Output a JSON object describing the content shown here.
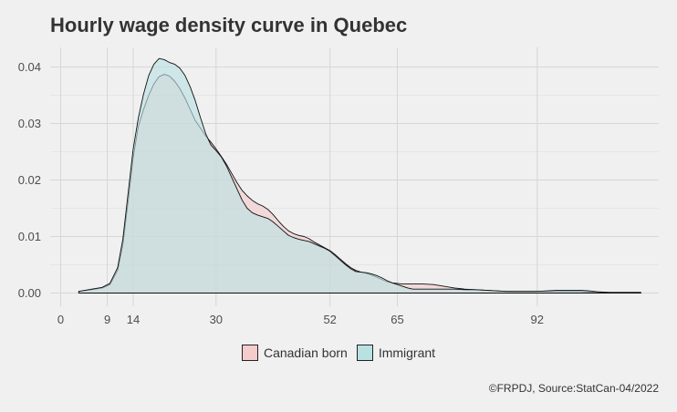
{
  "chart_data": {
    "type": "area",
    "title": "Hourly wage density curve in Quebec",
    "xlabel": "",
    "ylabel": "",
    "xlim": [
      0,
      113
    ],
    "ylim": [
      0,
      0.042
    ],
    "x_ticks": [
      0,
      9,
      14,
      30,
      52,
      65,
      92
    ],
    "y_ticks": [
      0.0,
      0.01,
      0.02,
      0.03,
      0.04
    ],
    "y_tick_labels": [
      "0.00",
      "0.01",
      "0.02",
      "0.03",
      "0.04"
    ],
    "grid": true,
    "legend_position": "bottom",
    "series": [
      {
        "name": "Canadian born",
        "color": "#f4cccc",
        "points": [
          [
            3.5,
            0.0003
          ],
          [
            6,
            0.0006
          ],
          [
            8,
            0.0009
          ],
          [
            9.5,
            0.0015
          ],
          [
            11,
            0.004
          ],
          [
            12,
            0.0085
          ],
          [
            13,
            0.016
          ],
          [
            14,
            0.024
          ],
          [
            15,
            0.0295
          ],
          [
            16,
            0.0325
          ],
          [
            17,
            0.035
          ],
          [
            18,
            0.037
          ],
          [
            19,
            0.0383
          ],
          [
            20,
            0.0387
          ],
          [
            21,
            0.0384
          ],
          [
            22,
            0.0375
          ],
          [
            23,
            0.0362
          ],
          [
            24,
            0.0345
          ],
          [
            25,
            0.0325
          ],
          [
            26,
            0.0305
          ],
          [
            27,
            0.0292
          ],
          [
            28,
            0.0278
          ],
          [
            29,
            0.0267
          ],
          [
            30,
            0.0255
          ],
          [
            31,
            0.0242
          ],
          [
            32,
            0.0228
          ],
          [
            33,
            0.0212
          ],
          [
            34,
            0.0196
          ],
          [
            35,
            0.0182
          ],
          [
            36,
            0.0172
          ],
          [
            37,
            0.0164
          ],
          [
            38,
            0.0158
          ],
          [
            39,
            0.0154
          ],
          [
            40,
            0.0148
          ],
          [
            41,
            0.0139
          ],
          [
            42,
            0.0128
          ],
          [
            43,
            0.0118
          ],
          [
            44,
            0.011
          ],
          [
            45,
            0.0105
          ],
          [
            46,
            0.0102
          ],
          [
            47,
            0.01
          ],
          [
            48,
            0.0096
          ],
          [
            49,
            0.009
          ],
          [
            50,
            0.0085
          ],
          [
            51,
            0.008
          ],
          [
            52,
            0.0075
          ],
          [
            53,
            0.0068
          ],
          [
            54,
            0.006
          ],
          [
            55,
            0.0052
          ],
          [
            56,
            0.0045
          ],
          [
            57,
            0.004
          ],
          [
            58,
            0.0037
          ],
          [
            59,
            0.0035
          ],
          [
            60,
            0.0032
          ],
          [
            61,
            0.0028
          ],
          [
            62,
            0.0024
          ],
          [
            63,
            0.002
          ],
          [
            64,
            0.0018
          ],
          [
            65,
            0.0017
          ],
          [
            66,
            0.0016
          ],
          [
            67,
            0.0016
          ],
          [
            68,
            0.0016
          ],
          [
            70,
            0.0016
          ],
          [
            72,
            0.0015
          ],
          [
            74,
            0.0012
          ],
          [
            76,
            0.0009
          ],
          [
            78,
            0.0007
          ],
          [
            80,
            0.0006
          ],
          [
            82,
            0.0005
          ],
          [
            84,
            0.0004
          ],
          [
            86,
            0.0003
          ],
          [
            88,
            0.0003
          ],
          [
            90,
            0.0003
          ],
          [
            92,
            0.0003
          ],
          [
            94,
            0.0003
          ],
          [
            96,
            0.0003
          ],
          [
            98,
            0.0003
          ],
          [
            100,
            0.0003
          ],
          [
            102,
            0.0002
          ],
          [
            104,
            0.0001
          ],
          [
            106,
            0.0001
          ],
          [
            108,
            0.0001
          ],
          [
            110,
            0.0001
          ],
          [
            112,
            0.0001
          ]
        ]
      },
      {
        "name": "Immigrant",
        "color": "#b9e1e2",
        "points": [
          [
            3.5,
            0.0003
          ],
          [
            6,
            0.0007
          ],
          [
            8,
            0.001
          ],
          [
            9.5,
            0.0017
          ],
          [
            11,
            0.0045
          ],
          [
            12,
            0.0095
          ],
          [
            13,
            0.0175
          ],
          [
            14,
            0.0255
          ],
          [
            15,
            0.031
          ],
          [
            16,
            0.0352
          ],
          [
            17,
            0.0385
          ],
          [
            18,
            0.0405
          ],
          [
            19,
            0.0415
          ],
          [
            20,
            0.0413
          ],
          [
            21,
            0.0408
          ],
          [
            22,
            0.0405
          ],
          [
            23,
            0.0398
          ],
          [
            24,
            0.0385
          ],
          [
            25,
            0.0365
          ],
          [
            26,
            0.034
          ],
          [
            27,
            0.031
          ],
          [
            28,
            0.0282
          ],
          [
            29,
            0.0262
          ],
          [
            30,
            0.0252
          ],
          [
            31,
            0.0241
          ],
          [
            32,
            0.0225
          ],
          [
            33,
            0.0205
          ],
          [
            34,
            0.0185
          ],
          [
            35,
            0.0165
          ],
          [
            36,
            0.015
          ],
          [
            37,
            0.0142
          ],
          [
            38,
            0.0138
          ],
          [
            39,
            0.0135
          ],
          [
            40,
            0.0132
          ],
          [
            41,
            0.0126
          ],
          [
            42,
            0.0118
          ],
          [
            43,
            0.011
          ],
          [
            44,
            0.0102
          ],
          [
            45,
            0.0098
          ],
          [
            46,
            0.0095
          ],
          [
            47,
            0.0093
          ],
          [
            48,
            0.0091
          ],
          [
            49,
            0.0087
          ],
          [
            50,
            0.0083
          ],
          [
            51,
            0.0079
          ],
          [
            52,
            0.0074
          ],
          [
            53,
            0.0066
          ],
          [
            54,
            0.0058
          ],
          [
            55,
            0.005
          ],
          [
            56,
            0.0043
          ],
          [
            57,
            0.0038
          ],
          [
            58,
            0.0037
          ],
          [
            59,
            0.0036
          ],
          [
            60,
            0.0034
          ],
          [
            61,
            0.0031
          ],
          [
            62,
            0.0027
          ],
          [
            63,
            0.0022
          ],
          [
            64,
            0.0018
          ],
          [
            65,
            0.0015
          ],
          [
            66,
            0.0012
          ],
          [
            67,
            0.0009
          ],
          [
            68,
            0.0007
          ],
          [
            70,
            0.0007
          ],
          [
            72,
            0.0007
          ],
          [
            74,
            0.0007
          ],
          [
            76,
            0.0007
          ],
          [
            78,
            0.0006
          ],
          [
            80,
            0.0006
          ],
          [
            82,
            0.0005
          ],
          [
            84,
            0.0004
          ],
          [
            86,
            0.0003
          ],
          [
            88,
            0.0003
          ],
          [
            90,
            0.0003
          ],
          [
            92,
            0.0003
          ],
          [
            94,
            0.0004
          ],
          [
            96,
            0.0005
          ],
          [
            98,
            0.0005
          ],
          [
            100,
            0.0005
          ],
          [
            102,
            0.0004
          ],
          [
            104,
            0.0002
          ],
          [
            106,
            0.0001
          ],
          [
            108,
            0.0001
          ],
          [
            110,
            0.0001
          ],
          [
            112,
            0.0001
          ]
        ]
      }
    ]
  },
  "caption": "©FRPDJ, Source:StatCan-04/2022"
}
